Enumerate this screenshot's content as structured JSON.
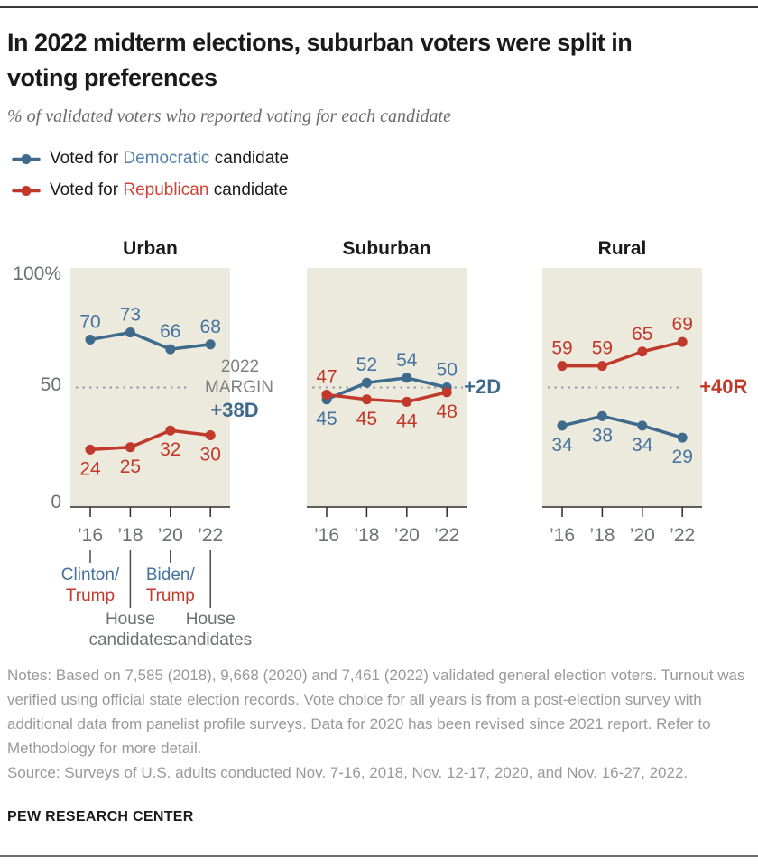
{
  "header": {
    "title": "In 2022 midterm elections, suburban voters were split in voting preferences",
    "subtitle": "% of validated voters who reported voting for each candidate"
  },
  "legend": [
    {
      "prefix": "Voted for ",
      "party": "Democratic",
      "suffix": " candidate"
    },
    {
      "prefix": "Voted for ",
      "party": "Republican",
      "suffix": " candidate"
    }
  ],
  "chart_data": {
    "type": "line",
    "x": [
      "’16",
      "’18",
      "’20",
      "’22"
    ],
    "ylim": [
      0,
      100
    ],
    "yticks": [
      "100%",
      "50",
      "0"
    ],
    "reference_line": 50,
    "panels": [
      {
        "title": "Urban",
        "margin": {
          "year_label": "2022",
          "margin_word": "MARGIN",
          "value": "+38D",
          "party": "dem"
        },
        "series": [
          {
            "name": "Democratic",
            "values": [
              70,
              73,
              66,
              68
            ]
          },
          {
            "name": "Republican",
            "values": [
              24,
              25,
              32,
              30
            ]
          }
        ]
      },
      {
        "title": "Suburban",
        "margin": {
          "value": "+2D",
          "party": "dem"
        },
        "series": [
          {
            "name": "Democratic",
            "values": [
              45,
              52,
              54,
              50
            ]
          },
          {
            "name": "Republican",
            "values": [
              47,
              45,
              44,
              48
            ]
          }
        ]
      },
      {
        "title": "Rural",
        "margin": {
          "value": "+40R",
          "party": "rep"
        },
        "series": [
          {
            "name": "Democratic",
            "values": [
              34,
              38,
              34,
              29
            ]
          },
          {
            "name": "Republican",
            "values": [
              59,
              59,
              65,
              69
            ]
          }
        ]
      }
    ],
    "x_annotations": [
      {
        "tick": "’16",
        "long": false,
        "lines": [
          {
            "text": "Clinton/",
            "color": "dem"
          },
          {
            "text": "Trump",
            "color": "rep"
          }
        ]
      },
      {
        "tick": "’18",
        "long": true,
        "lines": [
          {
            "text": "House",
            "color": "gray"
          },
          {
            "text": "candidates",
            "color": "gray"
          }
        ]
      },
      {
        "tick": "’20",
        "long": false,
        "lines": [
          {
            "text": "Biden/",
            "color": "dem"
          },
          {
            "text": "Trump",
            "color": "rep"
          }
        ]
      },
      {
        "tick": "’22",
        "long": true,
        "lines": [
          {
            "text": "House",
            "color": "gray"
          },
          {
            "text": "candidates",
            "color": "gray"
          }
        ]
      }
    ]
  },
  "notes": {
    "notes": "Notes: Based on 7,585 (2018), 9,668 (2020) and 7,461 (2022) validated general election voters. Turnout was verified using official state election records. Vote choice for all years is from a post-election survey with additional data from panelist profile surveys. Data for 2020 has been revised since 2021 report. Refer to Methodology for more detail.",
    "source": "Source: Surveys of U.S. adults conducted Nov. 7-16, 2018, Nov. 12-17, 2020, and Nov. 16-27, 2022."
  },
  "footer": "PEW RESEARCH CENTER",
  "colors": {
    "dem": "#3e6a8c",
    "dem_label": "#46739e",
    "dem_word": "#5580ab",
    "rep": "#c0392b",
    "rep_word": "#cf4335",
    "panel_bg": "#ece9dd",
    "axis_gray": "#6e7173",
    "margin_gray": "#818181",
    "note_gray": "#999999"
  }
}
